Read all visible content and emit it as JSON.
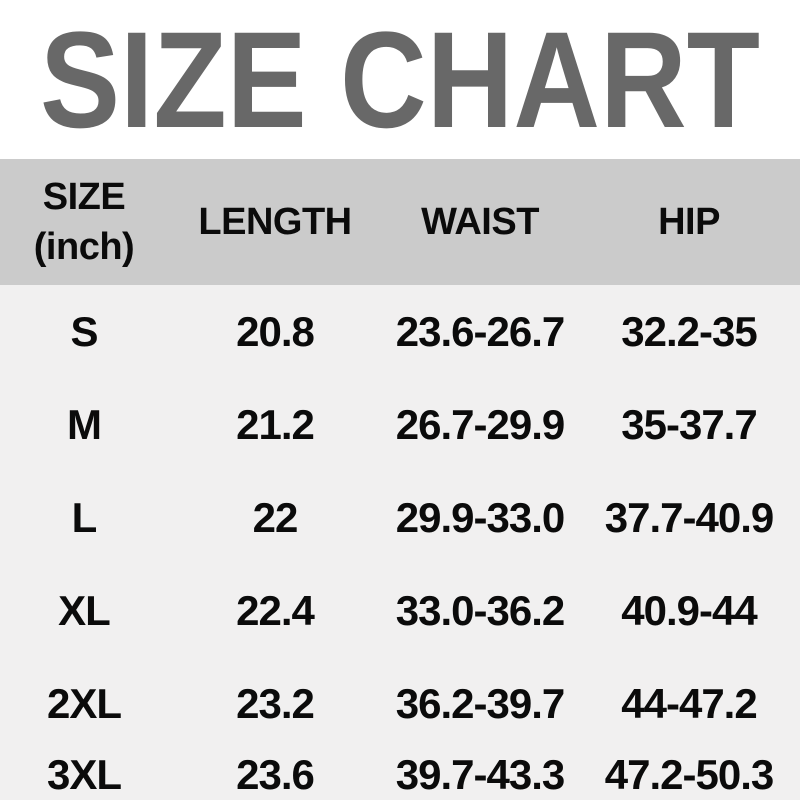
{
  "title": "SIZE CHART",
  "colors": {
    "title_text": "#686868",
    "header_bg": "#cbcbcb",
    "body_bg": "#f1f0f0",
    "cell_text": "#0b0b0b",
    "page_bg": "#ffffff"
  },
  "header": {
    "size_line1": "SIZE",
    "size_line2": "(inch)",
    "length": "LENGTH",
    "waist": "WAIST",
    "hip": "HIP"
  },
  "chart_data": {
    "type": "table",
    "title": "SIZE CHART",
    "unit": "inch",
    "columns": [
      "SIZE (inch)",
      "LENGTH",
      "WAIST",
      "HIP"
    ],
    "rows": [
      [
        "S",
        "20.8",
        "23.6-26.7",
        "32.2-35"
      ],
      [
        "M",
        "21.2",
        "26.7-29.9",
        "35-37.7"
      ],
      [
        "L",
        "22",
        "29.9-33.0",
        "37.7-40.9"
      ],
      [
        "XL",
        "22.4",
        "33.0-36.2",
        "40.9-44"
      ],
      [
        "2XL",
        "23.2",
        "36.2-39.7",
        "44-47.2"
      ],
      [
        "3XL",
        "23.6",
        "39.7-43.3",
        "47.2-50.3"
      ]
    ]
  }
}
